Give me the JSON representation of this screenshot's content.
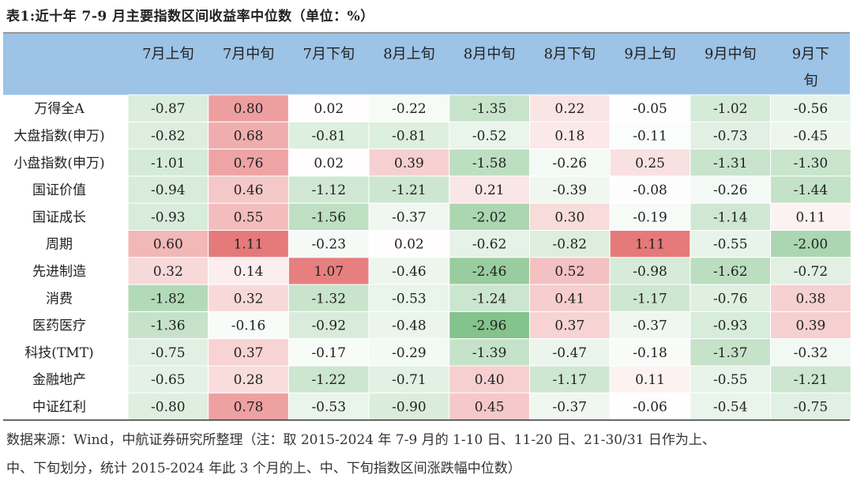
{
  "title": "表1:近十年 7-9 月主要指数区间收益率中位数（单位：%）",
  "header_bg": "#9dc3e6",
  "pos_color": "#e46f6f",
  "neg_color": "#82c28a",
  "chart_data": {
    "type": "heatmap",
    "columns": [
      "7月上旬",
      "7月中旬",
      "7月下旬",
      "8月上旬",
      "8月中旬",
      "8月下旬",
      "9月上旬",
      "9月中旬",
      "9月下\n旬"
    ],
    "rows": [
      {
        "name": "万得全A",
        "values": [
          -0.87,
          0.8,
          0.02,
          -0.22,
          -1.35,
          0.22,
          -0.05,
          -1.02,
          -0.56
        ]
      },
      {
        "name": "大盘指数(申万)",
        "values": [
          -0.82,
          0.68,
          -0.81,
          -0.81,
          -0.52,
          0.18,
          -0.11,
          -0.73,
          -0.45
        ]
      },
      {
        "name": "小盘指数(申万)",
        "values": [
          -1.01,
          0.76,
          0.02,
          0.39,
          -1.58,
          -0.26,
          0.25,
          -1.31,
          -1.3
        ]
      },
      {
        "name": "国证价值",
        "values": [
          -0.94,
          0.46,
          -1.12,
          -1.21,
          0.21,
          -0.39,
          -0.08,
          -0.26,
          -1.44
        ]
      },
      {
        "name": "国证成长",
        "values": [
          -0.93,
          0.55,
          -1.56,
          -0.37,
          -2.02,
          0.3,
          -0.19,
          -1.14,
          0.11
        ]
      },
      {
        "name": "周期",
        "values": [
          0.6,
          1.11,
          -0.23,
          0.02,
          -0.62,
          -0.82,
          1.11,
          -0.55,
          -2.0
        ]
      },
      {
        "name": "先进制造",
        "values": [
          0.32,
          0.14,
          1.07,
          -0.46,
          -2.46,
          0.52,
          -0.98,
          -1.62,
          -0.72
        ]
      },
      {
        "name": "消费",
        "values": [
          -1.82,
          0.32,
          -1.32,
          -0.53,
          -1.24,
          0.41,
          -1.17,
          -0.76,
          0.38
        ]
      },
      {
        "name": "医药医疗",
        "values": [
          -1.36,
          -0.16,
          -0.92,
          -0.48,
          -2.96,
          0.37,
          -0.37,
          -0.93,
          0.39
        ]
      },
      {
        "name": "科技(TMT)",
        "values": [
          -0.75,
          0.37,
          -0.17,
          -0.29,
          -1.39,
          -0.47,
          -0.18,
          -1.37,
          -0.32
        ]
      },
      {
        "name": "金融地产",
        "values": [
          -0.65,
          0.28,
          -1.22,
          -0.71,
          0.4,
          -1.17,
          0.11,
          -0.55,
          -1.21
        ]
      },
      {
        "name": "中证红利",
        "values": [
          -0.8,
          0.78,
          -0.53,
          -0.9,
          0.45,
          -0.37,
          -0.06,
          -0.54,
          -0.75
        ]
      }
    ]
  },
  "source": {
    "line1": "数据来源：Wind，中航证券研究所整理（注：取 2015-2024 年 7-9 月的 1-10 日、11-20 日、21-30/31 日作为上、",
    "line2": "中、下旬划分，统计 2015-2024 年此 3 个月的上、中、下旬指数区间涨跌幅中位数）"
  }
}
